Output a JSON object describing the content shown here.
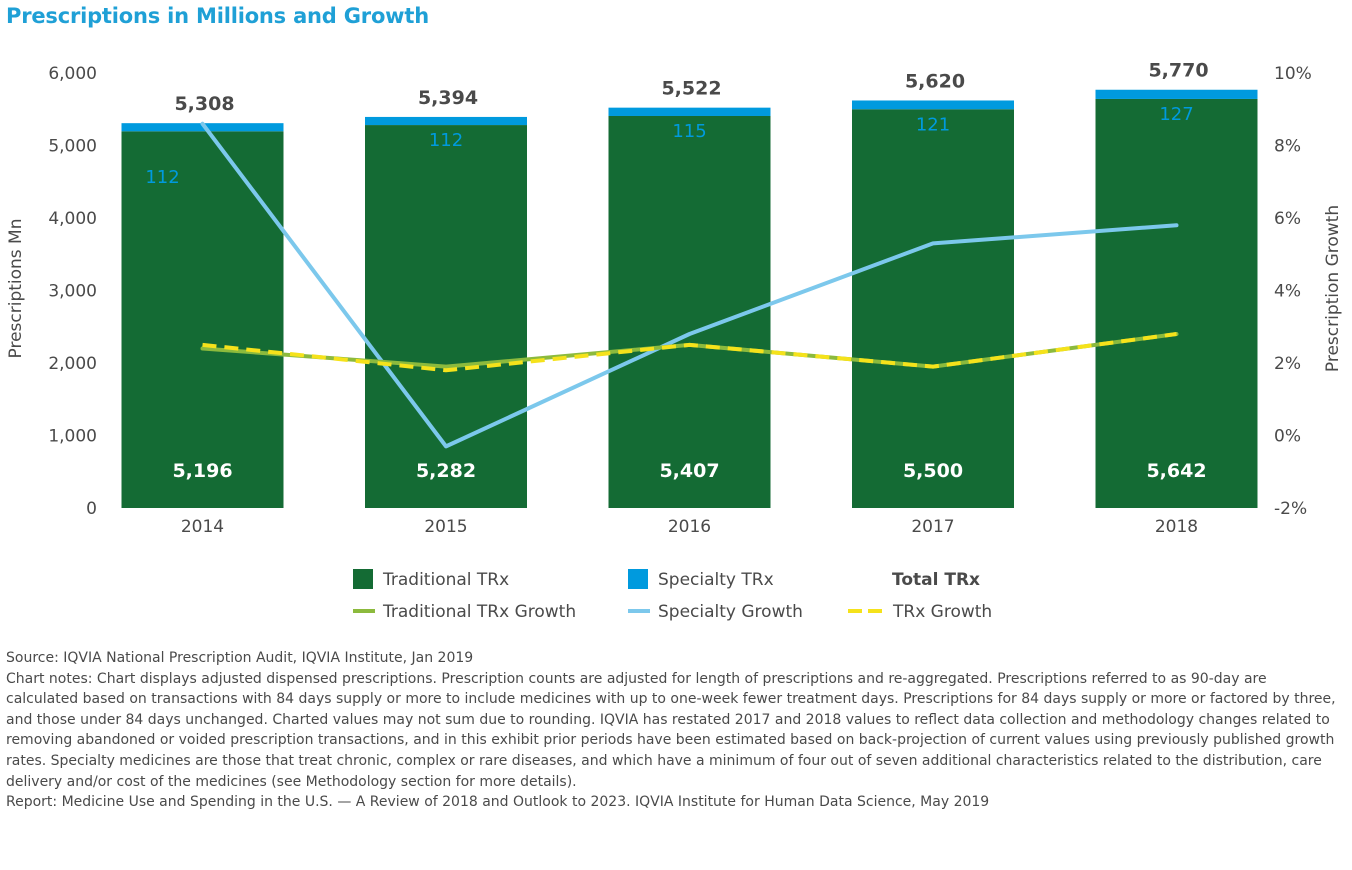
{
  "title": "Prescriptions in Millions and Growth",
  "colors": {
    "traditional": "#146b34",
    "specialty": "#009ade",
    "traditional_growth": "#8cba3d",
    "specialty_growth": "#7cc8ec",
    "trx_growth": "#f5e21b",
    "title": "#1fa0d6"
  },
  "chart_data": {
    "type": "bar",
    "stacked": true,
    "categories": [
      "2014",
      "2015",
      "2016",
      "2017",
      "2018"
    ],
    "series": [
      {
        "name": "Traditional TRx",
        "type": "bar",
        "axis": "left",
        "values": [
          5196,
          5282,
          5407,
          5500,
          5642
        ],
        "labels": [
          "5,196",
          "5,282",
          "5,407",
          "5,500",
          "5,642"
        ]
      },
      {
        "name": "Specialty TRx",
        "type": "bar",
        "axis": "left",
        "values": [
          112,
          112,
          115,
          121,
          127
        ],
        "labels": [
          "112",
          "112",
          "115",
          "121",
          "127"
        ]
      },
      {
        "name": "Traditional TRx Growth",
        "type": "line",
        "axis": "right",
        "values": [
          2.4,
          1.9,
          2.5,
          1.9,
          2.8
        ]
      },
      {
        "name": "Specialty Growth",
        "type": "line",
        "axis": "right",
        "values": [
          8.6,
          -0.3,
          2.8,
          5.3,
          5.8
        ]
      },
      {
        "name": "TRx Growth",
        "type": "line",
        "axis": "right",
        "dashed": true,
        "values": [
          2.5,
          1.8,
          2.5,
          1.9,
          2.8
        ]
      }
    ],
    "totals": {
      "name": "Total TRx",
      "values": [
        5308,
        5394,
        5522,
        5620,
        5770
      ],
      "labels": [
        "5,308",
        "5,394",
        "5,522",
        "5,620",
        "5,770"
      ]
    },
    "ylabel": "Prescriptions Mn",
    "ylim": [
      0,
      6000
    ],
    "yticks": [
      "0",
      "1,000",
      "2,000",
      "3,000",
      "4,000",
      "5,000",
      "6,000"
    ],
    "y2label": "Prescription Growth",
    "y2lim": [
      -2,
      10
    ],
    "y2ticks": [
      "-2%",
      "0%",
      "2%",
      "4%",
      "6%",
      "8%",
      "10%"
    ],
    "grid": false,
    "legend_position": "bottom"
  },
  "notes": {
    "source": "Source: IQVIA National Prescription Audit, IQVIA Institute, Jan 2019",
    "chart_notes": "Chart notes: Chart displays adjusted dispensed prescriptions. Prescription counts are adjusted for length of prescriptions and re-aggregated. Prescriptions referred to as 90-day are calculated based on transactions with 84 days supply or more to include medicines with up to one-week fewer treatment days. Prescriptions for 84 days supply or more or factored by three, and those under 84 days unchanged. Charted values may not sum due to rounding. IQVIA has restated 2017 and 2018 values to reflect data collection and methodology changes related to removing abandoned or voided prescription transactions, and in this exhibit prior periods have been estimated based on back-projection of current values using previously published growth rates. Specialty medicines are those that treat chronic, complex or rare diseases, and which have a minimum of four out of seven additional characteristics related to the distribution, care delivery and/or cost of the medicines (see Methodology section for more details).",
    "report": "Report: Medicine Use and Spending in the U.S. — A Review of 2018 and Outlook to 2023. IQVIA Institute for Human Data Science, May 2019"
  }
}
